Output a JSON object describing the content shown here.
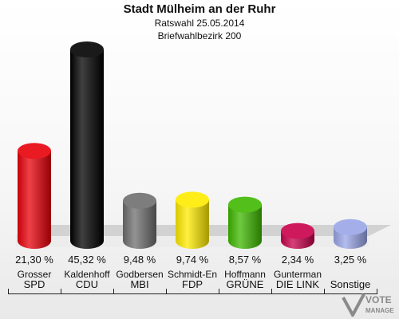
{
  "header": {
    "title": "Stadt Mülheim an der Ruhr",
    "subtitle": "Ratswahl 25.05.2014",
    "district": "Briefwahlbezirk 200"
  },
  "chart_data": {
    "type": "bar",
    "title": "Stadt Mülheim an der Ruhr",
    "subtitle": "Ratswahl 25.05.2014 / Briefwahlbezirk 200",
    "categories": [
      "SPD",
      "CDU",
      "MBI",
      "FDP",
      "GRÜNE",
      "DIE LINK",
      "Sonstige"
    ],
    "candidates": [
      "Grosser",
      "Kaldenhoff",
      "Godbersen",
      "Schmidt-En",
      "Hoffmann",
      "Gunterman",
      ""
    ],
    "values": [
      21.3,
      45.32,
      9.48,
      9.74,
      8.57,
      2.34,
      3.25
    ],
    "labels": [
      "21,30 %",
      "45,32 %",
      "9,48 %",
      "9,74 %",
      "8,57 %",
      "2,34 %",
      "3,25 %"
    ],
    "colors": [
      "#e8000b",
      "#000000",
      "#6f6f6f",
      "#ffeb00",
      "#3fb800",
      "#c8004b",
      "#9aa6e8"
    ],
    "ylim": [
      0,
      45.32
    ],
    "grid": false,
    "legend": "none"
  },
  "logo": {
    "line1": "VOTE",
    "line2": "MANAGER"
  }
}
